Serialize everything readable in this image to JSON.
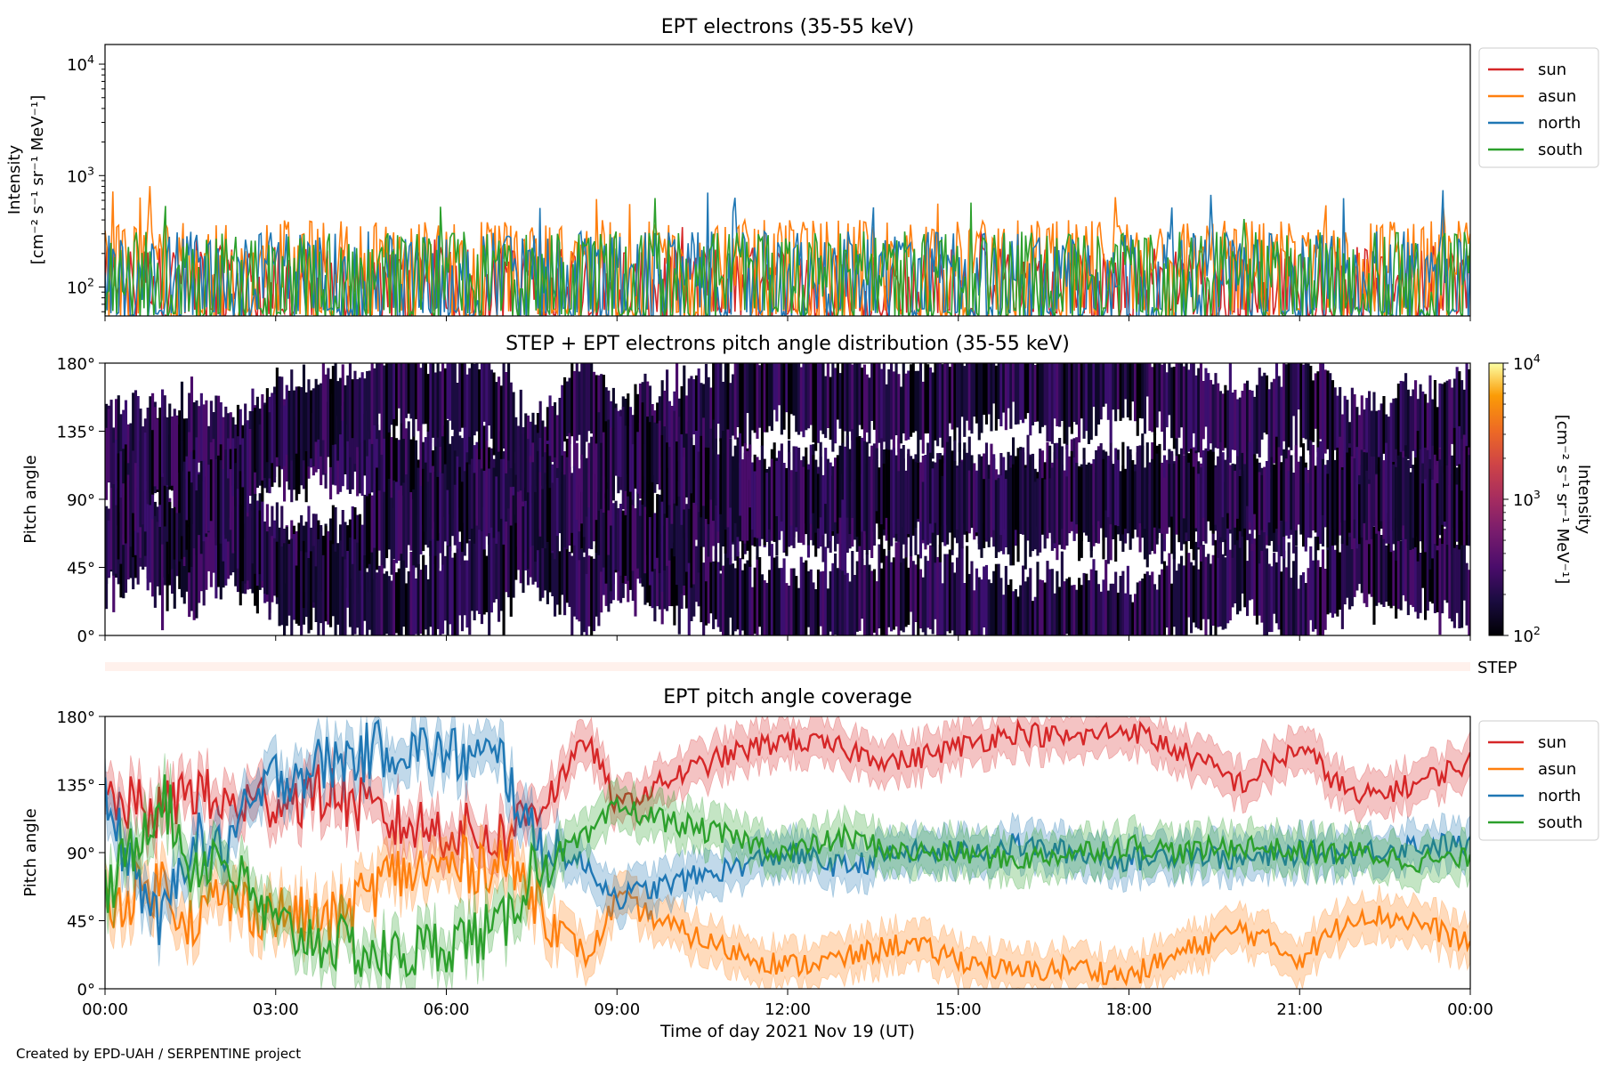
{
  "credit": "Created by EPD-UAH / SERPENTINE project",
  "colors": {
    "sun": "#d62728",
    "asun": "#ff7f0e",
    "north": "#1f77b4",
    "south": "#2ca02c",
    "step_bar": "#fff1ec"
  },
  "chart_data": [
    {
      "id": "intensity",
      "type": "line",
      "title": "EPT electrons (35-55 keV)",
      "ylabel": "Intensity",
      "ylabel_units": "[cm⁻² s⁻¹ sr⁻¹ MeV⁻¹]",
      "yscale": "log",
      "ylim": [
        55,
        15000
      ],
      "yticks": [
        {
          "value": 100,
          "base": "10",
          "exp": "2"
        },
        {
          "value": 1000,
          "base": "10",
          "exp": "3"
        },
        {
          "value": 10000,
          "base": "10",
          "exp": "4"
        }
      ],
      "xlim_hours": [
        0,
        24
      ],
      "legend": "outside-top-right",
      "series": [
        {
          "name": "sun",
          "color": "#d62728",
          "base": 110,
          "peak_max": 350
        },
        {
          "name": "asun",
          "color": "#ff7f0e",
          "base": 190,
          "peak_max": 870
        },
        {
          "name": "north",
          "color": "#1f77b4",
          "base": 150,
          "peak_max": 760
        },
        {
          "name": "south",
          "color": "#2ca02c",
          "base": 150,
          "peak_max": 660
        }
      ]
    },
    {
      "id": "pad",
      "type": "heatmap",
      "title": "STEP + EPT electrons pitch angle distribution (35-55 keV)",
      "ylabel": "Pitch angle",
      "yticks": [
        "0°",
        "45°",
        "90°",
        "135°",
        "180°"
      ],
      "ylim": [
        0,
        180
      ],
      "xlim_hours": [
        0,
        24
      ],
      "colorbar": {
        "label": "Intensity",
        "units": "[cm⁻² s⁻¹ sr⁻¹ MeV⁻¹]",
        "scale": "log",
        "range": [
          100,
          10000
        ],
        "ticks": [
          {
            "base": "10",
            "exp": "2"
          },
          {
            "base": "10",
            "exp": "3"
          },
          {
            "base": "10",
            "exp": "4"
          }
        ],
        "colormap": "inferno"
      }
    },
    {
      "id": "step_strip",
      "type": "bar",
      "label": "STEP"
    },
    {
      "id": "coverage",
      "type": "line",
      "title": "EPT pitch angle coverage",
      "ylabel": "Pitch angle",
      "yticks": [
        "0°",
        "45°",
        "90°",
        "135°",
        "180°"
      ],
      "ylim": [
        0,
        180
      ],
      "xlim_hours": [
        0,
        24
      ],
      "xticks": [
        "00:00",
        "03:00",
        "06:00",
        "09:00",
        "12:00",
        "15:00",
        "18:00",
        "21:00",
        "00:00"
      ],
      "xlabel": "Time of day 2021 Nov 19 (UT)",
      "legend": "outside-top-right",
      "band_halfwidth_deg": 14,
      "series": [
        {
          "name": "sun",
          "color": "#d62728",
          "x": [
            0,
            1,
            1.5,
            2,
            3,
            4,
            5,
            6,
            7,
            7.5,
            8,
            8.5,
            9,
            10,
            11,
            12,
            13,
            14,
            15,
            16,
            17,
            18,
            19,
            20,
            21,
            22,
            23,
            24
          ],
          "y": [
            125,
            115,
            135,
            120,
            125,
            130,
            110,
            105,
            100,
            118,
            140,
            165,
            120,
            140,
            155,
            165,
            158,
            150,
            160,
            170,
            165,
            172,
            155,
            135,
            160,
            125,
            135,
            150
          ]
        },
        {
          "name": "asun",
          "color": "#ff7f0e",
          "x": [
            0,
            1,
            1.5,
            2,
            3,
            4,
            5,
            6,
            7,
            7.5,
            8,
            8.5,
            9,
            10,
            11,
            12,
            13,
            14,
            15,
            16,
            17,
            18,
            19,
            20,
            21,
            22,
            23,
            24
          ],
          "y": [
            55,
            70,
            45,
            60,
            50,
            45,
            75,
            80,
            85,
            65,
            40,
            20,
            60,
            40,
            25,
            15,
            20,
            30,
            20,
            10,
            15,
            8,
            25,
            40,
            20,
            50,
            45,
            30
          ]
        },
        {
          "name": "north",
          "color": "#1f77b4",
          "x": [
            0,
            1,
            1.5,
            2,
            3,
            4,
            5,
            6,
            7,
            7.5,
            8,
            8.5,
            9,
            10,
            11,
            12,
            13,
            14,
            15,
            16,
            17,
            18,
            19,
            20,
            21,
            22,
            23,
            24
          ],
          "y": [
            120,
            40,
            100,
            90,
            140,
            150,
            160,
            155,
            150,
            100,
            90,
            80,
            60,
            70,
            80,
            90,
            80,
            90,
            90,
            95,
            90,
            85,
            90,
            85,
            90,
            90,
            95,
            95
          ]
        },
        {
          "name": "south",
          "color": "#2ca02c",
          "x": [
            0,
            1,
            1.5,
            2,
            3,
            4,
            5,
            6,
            7,
            7.5,
            8,
            8.5,
            9,
            10,
            11,
            12,
            13,
            14,
            15,
            16,
            17,
            18,
            19,
            20,
            21,
            22,
            23,
            24
          ],
          "y": [
            60,
            130,
            80,
            90,
            40,
            30,
            20,
            30,
            40,
            80,
            90,
            100,
            120,
            110,
            100,
            90,
            100,
            90,
            90,
            85,
            90,
            95,
            90,
            95,
            90,
            90,
            85,
            85
          ]
        }
      ]
    }
  ]
}
